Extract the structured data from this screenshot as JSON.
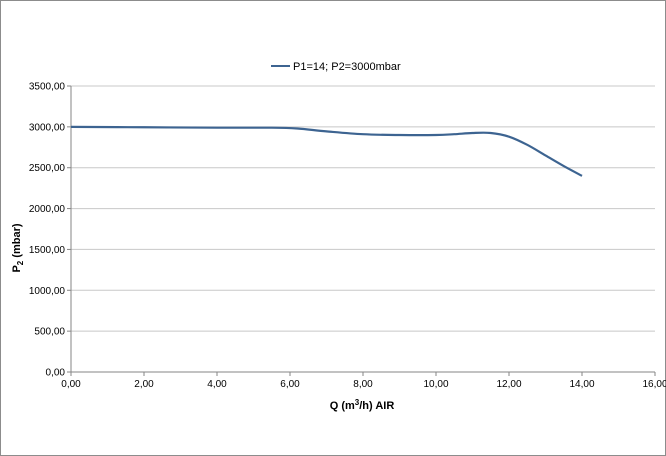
{
  "chart_data": {
    "type": "line",
    "legend": {
      "position": "top"
    },
    "xlim": [
      0,
      16
    ],
    "ylim": [
      0,
      3500
    ],
    "x_ticks": [
      "0,00",
      "2,00",
      "4,00",
      "6,00",
      "8,00",
      "10,00",
      "12,00",
      "14,00",
      "16,00"
    ],
    "y_ticks": [
      "0,00",
      "500,00",
      "1000,00",
      "1500,00",
      "2000,00",
      "2500,00",
      "3000,00",
      "3500,00"
    ],
    "x_tick_values": [
      0,
      2,
      4,
      6,
      8,
      10,
      12,
      14,
      16
    ],
    "y_tick_values": [
      0,
      500,
      1000,
      1500,
      2000,
      2500,
      3000,
      3500
    ],
    "xlabel": {
      "main": "Q (m",
      "sup": "3",
      "tail": "/h) AIR"
    },
    "ylabel": {
      "main": "P",
      "sub": "2",
      "tail": " (mbar)"
    },
    "grid": {
      "horizontal": true,
      "vertical": false
    },
    "series": [
      {
        "name": "P1=14; P2=3000mbar",
        "color": "#3d6491",
        "x": [
          0,
          2,
          4,
          5.5,
          6.2,
          7,
          8,
          9,
          10,
          10.5,
          11,
          11.5,
          12,
          12.5,
          13,
          13.5,
          14
        ],
        "y": [
          3000,
          2995,
          2990,
          2990,
          2980,
          2945,
          2910,
          2900,
          2900,
          2910,
          2925,
          2925,
          2880,
          2780,
          2650,
          2520,
          2400
        ]
      }
    ]
  }
}
